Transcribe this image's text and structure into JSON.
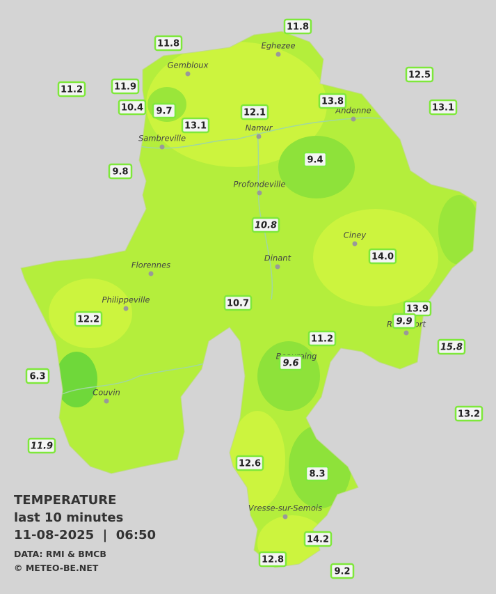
{
  "legend": {
    "title": "TEMPERATURE",
    "subtitle": "last 10 minutes",
    "timestamp": "11-08-2025  |  06:50",
    "source": "DATA: RMI & BMCB",
    "credit": "© METEO-BE.NET"
  },
  "cities": [
    "Gembloux",
    "Eghezee",
    "Andenne",
    "Namur",
    "Sambreville",
    "Profondeville",
    "Ciney",
    "Dinant",
    "Florennes",
    "Philippeville",
    "Rochefort",
    "Beauraing",
    "Couvin",
    "Vresse-sur-Semois"
  ],
  "stations": [
    {
      "value": "11.8",
      "italic": false
    },
    {
      "value": "11.8",
      "italic": false
    },
    {
      "value": "12.5",
      "italic": false
    },
    {
      "value": "11.2",
      "italic": false
    },
    {
      "value": "11.9",
      "italic": false
    },
    {
      "value": "13.8",
      "italic": false
    },
    {
      "value": "13.1",
      "italic": false
    },
    {
      "value": "10.4",
      "italic": false
    },
    {
      "value": "9.7",
      "italic": false
    },
    {
      "value": "12.1",
      "italic": false
    },
    {
      "value": "13.1",
      "italic": false
    },
    {
      "value": "9.4",
      "italic": false
    },
    {
      "value": "9.8",
      "italic": false
    },
    {
      "value": "10.8",
      "italic": true
    },
    {
      "value": "14.0",
      "italic": false
    },
    {
      "value": "10.7",
      "italic": false
    },
    {
      "value": "13.9",
      "italic": false
    },
    {
      "value": "9.9",
      "italic": true
    },
    {
      "value": "12.2",
      "italic": false
    },
    {
      "value": "11.2",
      "italic": false
    },
    {
      "value": "15.8",
      "italic": true
    },
    {
      "value": "9.6",
      "italic": true
    },
    {
      "value": "6.3",
      "italic": false
    },
    {
      "value": "13.2",
      "italic": false
    },
    {
      "value": "11.9",
      "italic": true
    },
    {
      "value": "12.6",
      "italic": false
    },
    {
      "value": "8.3",
      "italic": false
    },
    {
      "value": "14.2",
      "italic": false
    },
    {
      "value": "12.8",
      "italic": false
    },
    {
      "value": "9.2",
      "italic": false
    }
  ]
}
